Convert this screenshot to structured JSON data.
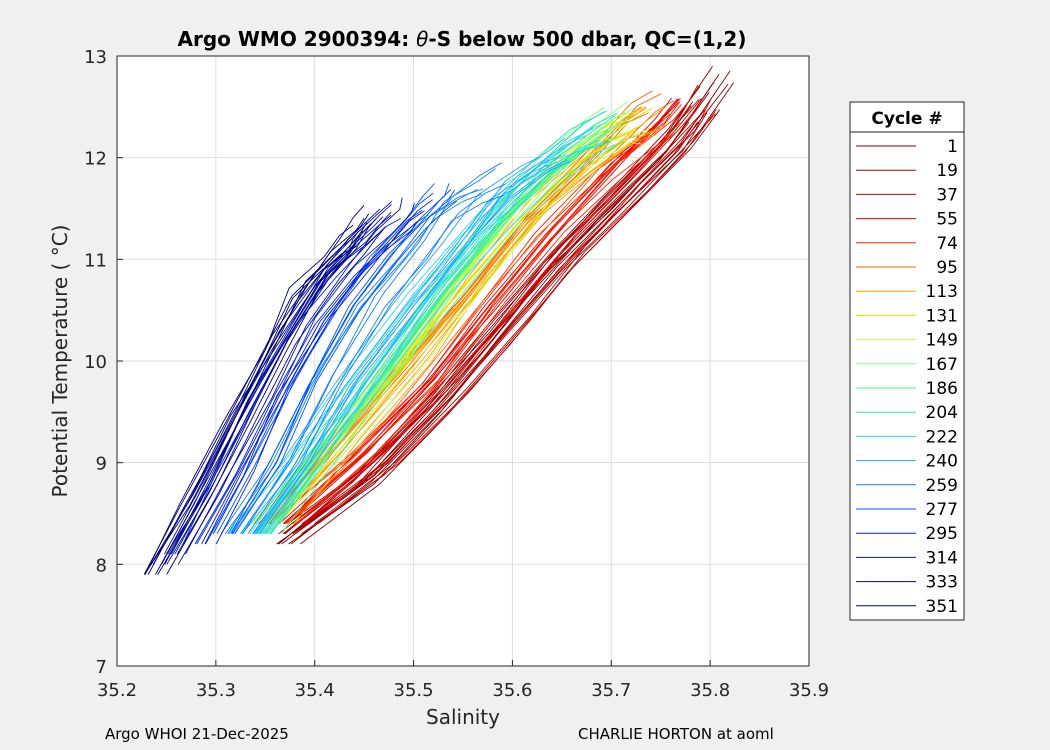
{
  "chart_data": {
    "type": "line",
    "title": "Argo WMO 2900394: θ-S below 500 dbar,  QC=(1,2)",
    "title_parts": {
      "prefix": "Argo WMO 2900394: ",
      "theta": "θ",
      "suffix": "-S below 500 dbar,  QC=(1,2)"
    },
    "xlabel": "Salinity",
    "ylabel": "Potential Temperature ( °C)",
    "xlim": [
      35.2,
      35.9
    ],
    "ylim": [
      7,
      13
    ],
    "xticks": [
      "35.2",
      "35.3",
      "35.4",
      "35.5",
      "35.6",
      "35.7",
      "35.8",
      "35.9"
    ],
    "yticks": [
      "7",
      "8",
      "9",
      "10",
      "11",
      "12",
      "13"
    ],
    "grid": true,
    "legend_title": "Cycle #",
    "legend_position": "outside-right",
    "series": [
      {
        "name": "1",
        "color": "#800000",
        "s": [
          35.37,
          35.45,
          35.52,
          35.58,
          35.64,
          35.7,
          35.76,
          35.81
        ],
        "t": [
          8.2,
          8.8,
          9.5,
          10.2,
          10.9,
          11.5,
          12.1,
          12.8
        ]
      },
      {
        "name": "19",
        "color": "#a00000",
        "s": [
          35.38,
          35.46,
          35.53,
          35.59,
          35.65,
          35.71,
          35.77,
          35.8
        ],
        "t": [
          8.3,
          8.9,
          9.6,
          10.3,
          11.0,
          11.6,
          12.2,
          12.6
        ]
      },
      {
        "name": "37",
        "color": "#c00000",
        "s": [
          35.39,
          35.47,
          35.54,
          35.6,
          35.66,
          35.72,
          35.77,
          35.79
        ],
        "t": [
          8.4,
          9.0,
          9.7,
          10.4,
          11.1,
          11.7,
          12.2,
          12.5
        ]
      },
      {
        "name": "55",
        "color": "#e00000",
        "s": [
          35.38,
          35.46,
          35.53,
          35.59,
          35.65,
          35.71,
          35.76,
          35.78
        ],
        "t": [
          8.4,
          9.1,
          9.8,
          10.5,
          11.2,
          11.8,
          12.3,
          12.5
        ]
      },
      {
        "name": "74",
        "color": "#ff2000",
        "s": [
          35.37,
          35.45,
          35.52,
          35.58,
          35.64,
          35.7,
          35.75,
          35.77
        ],
        "t": [
          8.4,
          9.1,
          9.8,
          10.6,
          11.3,
          11.9,
          12.3,
          12.5
        ]
      },
      {
        "name": "95",
        "color": "#ff6000",
        "s": [
          35.36,
          35.43,
          35.5,
          35.57,
          35.63,
          35.69,
          35.73,
          35.75
        ],
        "t": [
          8.4,
          9.1,
          9.9,
          10.7,
          11.4,
          12.0,
          12.4,
          12.5
        ]
      },
      {
        "name": "113",
        "color": "#ffa000",
        "s": [
          35.36,
          35.43,
          35.5,
          35.56,
          35.62,
          35.68,
          35.72,
          35.74
        ],
        "t": [
          8.4,
          9.2,
          10.0,
          10.8,
          11.5,
          12.0,
          12.3,
          12.4
        ]
      },
      {
        "name": "131",
        "color": "#e8e000",
        "s": [
          35.35,
          35.42,
          35.49,
          35.56,
          35.62,
          35.67,
          35.71,
          35.73
        ],
        "t": [
          8.4,
          9.2,
          10.0,
          10.8,
          11.5,
          12.0,
          12.3,
          12.4
        ]
      },
      {
        "name": "149",
        "color": "#c0ff40",
        "s": [
          35.35,
          35.42,
          35.49,
          35.55,
          35.61,
          35.66,
          35.7,
          35.72
        ],
        "t": [
          8.4,
          9.2,
          10.0,
          10.8,
          11.5,
          12.0,
          12.3,
          12.3
        ]
      },
      {
        "name": "167",
        "color": "#80ff80",
        "s": [
          35.35,
          35.41,
          35.48,
          35.54,
          35.6,
          35.65,
          35.69,
          35.71
        ],
        "t": [
          8.4,
          9.2,
          10.0,
          10.8,
          11.5,
          12.0,
          12.3,
          12.4
        ]
      },
      {
        "name": "186",
        "color": "#40ff80",
        "s": [
          35.35,
          35.41,
          35.47,
          35.53,
          35.59,
          35.64,
          35.68,
          35.7
        ],
        "t": [
          8.3,
          9.1,
          9.9,
          10.7,
          11.4,
          11.9,
          12.2,
          12.3
        ]
      },
      {
        "name": "204",
        "color": "#30e0c0",
        "s": [
          35.34,
          35.4,
          35.46,
          35.52,
          35.58,
          35.63,
          35.67,
          35.69
        ],
        "t": [
          8.3,
          9.1,
          9.9,
          10.7,
          11.4,
          11.9,
          12.2,
          12.3
        ]
      },
      {
        "name": "222",
        "color": "#30d0f0",
        "s": [
          35.33,
          35.39,
          35.45,
          35.51,
          35.56,
          35.61,
          35.65,
          35.67
        ],
        "t": [
          8.3,
          9.1,
          9.9,
          10.7,
          11.3,
          11.8,
          12.1,
          12.2
        ]
      },
      {
        "name": "240",
        "color": "#20a8ff",
        "s": [
          35.33,
          35.38,
          35.43,
          35.49,
          35.54,
          35.58,
          35.62,
          35.64
        ],
        "t": [
          8.3,
          9.0,
          9.8,
          10.6,
          11.2,
          11.7,
          12.0,
          12.1
        ]
      },
      {
        "name": "259",
        "color": "#1080ff",
        "s": [
          35.32,
          35.37,
          35.41,
          35.46,
          35.5,
          35.53,
          35.56,
          35.58
        ],
        "t": [
          8.3,
          9.0,
          9.8,
          10.6,
          11.1,
          11.5,
          11.7,
          11.8
        ]
      },
      {
        "name": "277",
        "color": "#0050ff",
        "s": [
          35.31,
          35.35,
          35.39,
          35.43,
          35.47,
          35.5,
          35.52,
          35.53
        ],
        "t": [
          8.3,
          9.0,
          9.8,
          10.5,
          11.0,
          11.3,
          11.5,
          11.6
        ]
      },
      {
        "name": "295",
        "color": "#0020e0",
        "s": [
          35.28,
          35.32,
          35.36,
          35.4,
          35.44,
          35.47,
          35.49,
          35.5
        ],
        "t": [
          8.2,
          8.9,
          9.7,
          10.4,
          10.9,
          11.2,
          11.4,
          11.5
        ]
      },
      {
        "name": "314",
        "color": "#0010b0",
        "s": [
          35.26,
          35.3,
          35.34,
          35.38,
          35.42,
          35.45,
          35.47,
          35.48
        ],
        "t": [
          8.1,
          8.8,
          9.6,
          10.3,
          10.9,
          11.2,
          11.4,
          11.5
        ]
      },
      {
        "name": "333",
        "color": "#000890",
        "s": [
          35.25,
          35.29,
          35.33,
          35.37,
          35.41,
          35.44,
          35.45,
          35.46
        ],
        "t": [
          8.0,
          8.7,
          9.5,
          10.2,
          10.8,
          11.1,
          11.3,
          11.4
        ]
      },
      {
        "name": "351",
        "color": "#000070",
        "s": [
          35.24,
          35.28,
          35.32,
          35.36,
          35.39,
          35.42,
          35.44,
          35.45
        ],
        "t": [
          7.9,
          8.6,
          9.4,
          10.1,
          10.7,
          11.0,
          11.2,
          11.3
        ]
      }
    ]
  },
  "footer": {
    "left": "Argo WHOI 21-Dec-2025",
    "right": "CHARLIE HORTON at aoml"
  }
}
